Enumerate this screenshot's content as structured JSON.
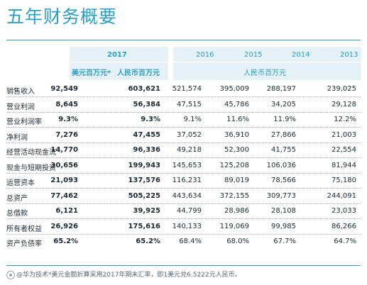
{
  "title": "五年财务概要",
  "header": {
    "year_2017": "2017",
    "years_rmb": [
      "2016",
      "2015",
      "2014",
      "2013"
    ],
    "unit_usd": "美元百万元*",
    "unit_rmb_2017": "人民币百万元",
    "unit_rmb_hist": "人民币百万元"
  },
  "rows": [
    {
      "label": "销售收入",
      "values": [
        "92,549",
        "603,621",
        "521,574",
        "395,009",
        "288,197",
        "239,025"
      ]
    },
    {
      "label": "营业利润",
      "values": [
        "8,645",
        "56,384",
        "47,515",
        "45,786",
        "34,205",
        "29,128"
      ]
    },
    {
      "label": "营业利润率",
      "values": [
        "9.3%",
        "9.3%",
        "9.1%",
        "11.6%",
        "11.9%",
        "12.2%"
      ]
    },
    {
      "label": "净利润",
      "values": [
        "7,276",
        "47,455",
        "37,052",
        "36,910",
        "27,866",
        "21,003"
      ]
    },
    {
      "label": "经营活动现金流",
      "values": [
        "14,770",
        "96,336",
        "49,218",
        "52,300",
        "41,755",
        "22,554"
      ]
    },
    {
      "label": "现金与短期投资",
      "values": [
        "30,656",
        "199,943",
        "145,653",
        "125,208",
        "106,036",
        "81,944"
      ]
    },
    {
      "label": "运营资本",
      "values": [
        "21,093",
        "137,576",
        "116,231",
        "89,019",
        "78,566",
        "75,180"
      ]
    },
    {
      "label": "总资产",
      "values": [
        "77,462",
        "505,225",
        "443,634",
        "372,155",
        "309,773",
        "244,091"
      ]
    },
    {
      "label": "总借款",
      "values": [
        "6,121",
        "39,925",
        "44,799",
        "28,986",
        "28,108",
        "23,033"
      ]
    },
    {
      "label": "所有者权益",
      "values": [
        "26,926",
        "175,616",
        "140,133",
        "119,069",
        "99,985",
        "86,266"
      ]
    },
    {
      "label": "资产负债率",
      "values": [
        "65.2%",
        "65.2%",
        "68.4%",
        "68.0%",
        "67.7%",
        "64.7%"
      ]
    }
  ],
  "footnote": {
    "watermark": "@华为技术",
    "text": "*美元金额折算采用2017年期末汇率，即1美元兑6.5222元人民币。"
  },
  "colors": {
    "accent": "#2a9fc4",
    "band": "#e6f1f6",
    "text": "#1e2a33"
  }
}
